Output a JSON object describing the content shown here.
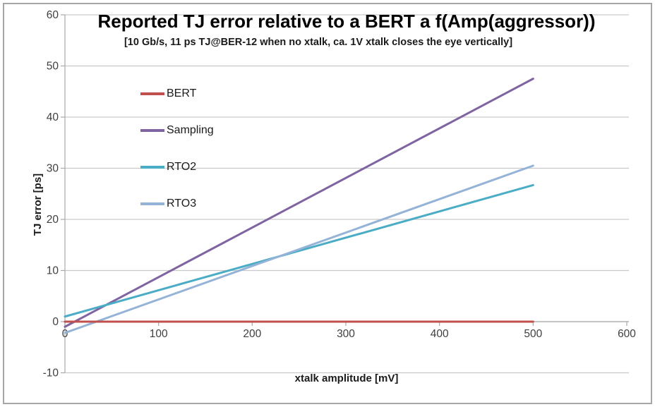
{
  "chart_data": {
    "type": "line",
    "title": "Reported TJ error relative to a BERT a f(Amp(aggressor))",
    "subtitle": "[10 Gb/s, 11 ps TJ@BER-12 when no xtalk, ca. 1V xtalk closes the eye vertically]",
    "xlabel": "xtalk amplitude [mV]",
    "ylabel": "TJ error [ps]",
    "xlim": [
      0,
      600
    ],
    "ylim": [
      -10,
      60
    ],
    "xticks": [
      0,
      100,
      200,
      300,
      400,
      500,
      600
    ],
    "yticks": [
      60,
      50,
      40,
      30,
      20,
      10,
      0,
      -10
    ],
    "grid": "horizontal-only",
    "legend_position": "inside-upper-left-vertical",
    "series": [
      {
        "name": "BERT",
        "color": "#C0504D",
        "x": [
          0,
          500
        ],
        "y": [
          0,
          0
        ]
      },
      {
        "name": "Sampling",
        "color": "#8064A2",
        "x": [
          0,
          500
        ],
        "y": [
          -1,
          47.5
        ]
      },
      {
        "name": "RTO2",
        "color": "#4BACC6",
        "x": [
          0,
          500
        ],
        "y": [
          1,
          26.7
        ]
      },
      {
        "name": "RTO3",
        "color": "#95B3D7",
        "x": [
          0,
          500
        ],
        "y": [
          -2.2,
          30.5
        ]
      }
    ],
    "colors": {
      "gridline": "#c9c9c9",
      "axis_line": "#a8a8a8",
      "tick_label": "#3f3f3f",
      "frame_border": "#a6a6a6"
    }
  }
}
